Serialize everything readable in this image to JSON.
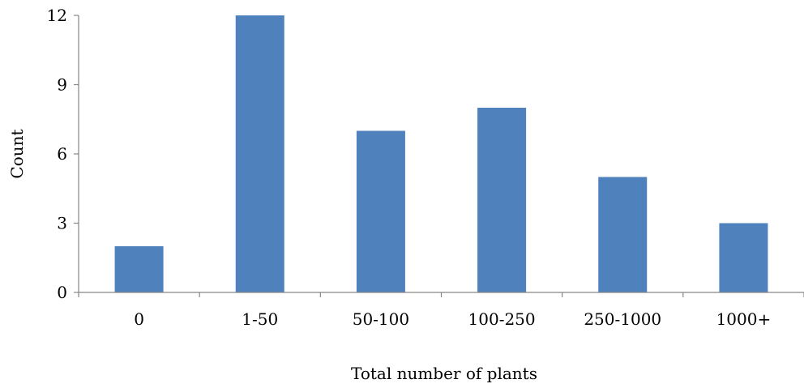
{
  "chart_data": {
    "type": "bar",
    "categories": [
      "0",
      "1-50",
      "50-100",
      "100-250",
      "250-1000",
      "1000+"
    ],
    "values": [
      2,
      12,
      7,
      8,
      5,
      3
    ],
    "title": "",
    "xlabel": "Total number of plants",
    "ylabel": "Count",
    "ylim": [
      0,
      12
    ],
    "yticks": [
      0,
      3,
      6,
      9,
      12
    ],
    "grid": false,
    "legend": "none",
    "colors": {
      "bar": "#4f81bd",
      "axis": "#868686",
      "text": "#000000"
    }
  }
}
